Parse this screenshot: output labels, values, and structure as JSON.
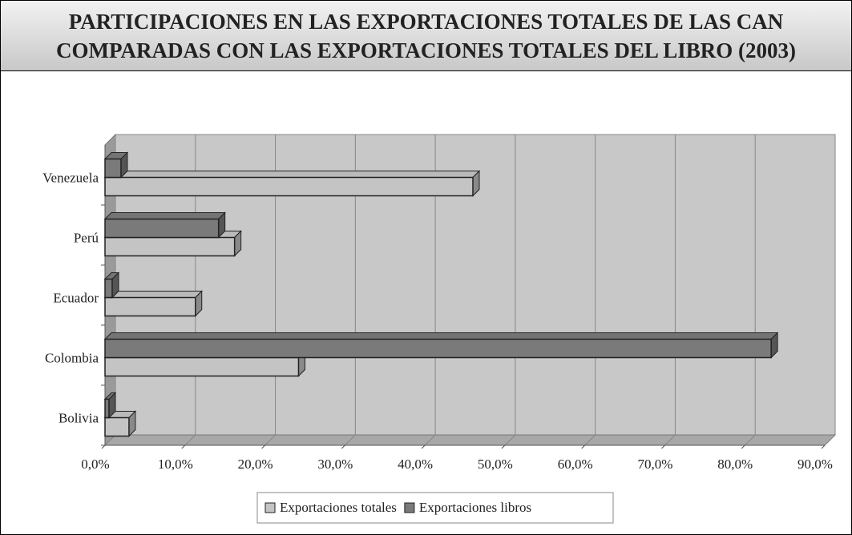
{
  "chart_data": {
    "type": "bar3d_horizontal",
    "title": [
      "PARTICIPACIONES EN LAS EXPORTACIONES TOTALES DE LAS CAN",
      "COMPARADAS CON LAS EXPORTACIONES TOTALES DEL LIBRO (2003)"
    ],
    "categories": [
      "Bolivia",
      "Colombia",
      "Ecuador",
      "Perú",
      "Venezuela"
    ],
    "series": [
      {
        "name": "Exportaciones totales",
        "color": "#c4c4c4",
        "values": [
          3.0,
          24.2,
          11.3,
          16.2,
          46.0
        ]
      },
      {
        "name": "Exportaciones libros",
        "color": "#7a7a7a",
        "values": [
          0.5,
          83.3,
          0.9,
          14.2,
          2.0
        ]
      }
    ],
    "xlim": [
      0,
      90
    ],
    "xticks": [
      {
        "value": 0,
        "label": "0,0%"
      },
      {
        "value": 10,
        "label": "10,0%"
      },
      {
        "value": 20,
        "label": "20,0%"
      },
      {
        "value": 30,
        "label": "30,0%"
      },
      {
        "value": 40,
        "label": "40,0%"
      },
      {
        "value": 50,
        "label": "50,0%"
      },
      {
        "value": 60,
        "label": "60,0%"
      },
      {
        "value": 70,
        "label": "70,0%"
      },
      {
        "value": 80,
        "label": "80,0%"
      },
      {
        "value": 90,
        "label": "90,0%"
      }
    ],
    "grid": true,
    "legend": "bottom"
  }
}
